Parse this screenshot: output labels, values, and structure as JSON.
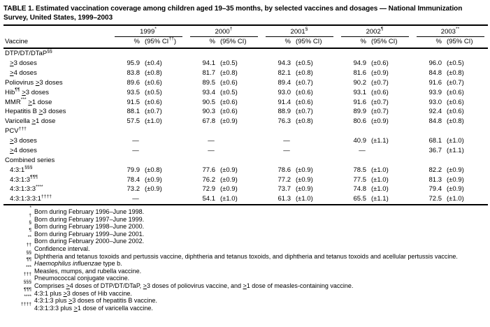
{
  "title": "TABLE 1. Estimated vaccination coverage among children aged 19–35 months, by selected vaccines and dosages — National Immunization Survey, United States, 1999–2003",
  "dash": "—",
  "columns": {
    "vaccine_label": "Vaccine",
    "pct_label": "%",
    "years": [
      {
        "label": "1999",
        "marker": "*",
        "ci": "(95% CI",
        "ci_marker": "††",
        "ci_close": ")"
      },
      {
        "label": "2000",
        "marker": "†",
        "ci": "(95% CI)",
        "ci_marker": "",
        "ci_close": ""
      },
      {
        "label": "2001",
        "marker": "§",
        "ci": "(95% CI)",
        "ci_marker": "",
        "ci_close": ""
      },
      {
        "label": "2002",
        "marker": "¶",
        "ci": "(95% CI)",
        "ci_marker": "",
        "ci_close": ""
      },
      {
        "label": "2003",
        "marker": "**",
        "ci": "(95% CI)",
        "ci_marker": "",
        "ci_close": ""
      }
    ]
  },
  "rows": [
    {
      "kind": "section",
      "indent": false,
      "label": "DTP/DT/DTaP",
      "marker": "§§",
      "label_after": "",
      "cells": []
    },
    {
      "kind": "data",
      "indent": true,
      "label": "≥3 doses",
      "marker": "",
      "label_after": "",
      "cells": [
        {
          "pct": "95.9",
          "ci": "(±0.4)"
        },
        {
          "pct": "94.1",
          "ci": "(±0.5)"
        },
        {
          "pct": "94.3",
          "ci": "(±0.5)"
        },
        {
          "pct": "94.9",
          "ci": "(±0.6)"
        },
        {
          "pct": "96.0",
          "ci": "(±0.5)"
        }
      ]
    },
    {
      "kind": "data",
      "indent": true,
      "label": "≥4 doses",
      "marker": "",
      "label_after": "",
      "cells": [
        {
          "pct": "83.8",
          "ci": "(±0.8)"
        },
        {
          "pct": "81.7",
          "ci": "(±0.8)"
        },
        {
          "pct": "82.1",
          "ci": "(±0.8)"
        },
        {
          "pct": "81.6",
          "ci": "(±0.9)"
        },
        {
          "pct": "84.8",
          "ci": "(±0.8)"
        }
      ]
    },
    {
      "kind": "data",
      "indent": false,
      "label": "Poliovirus ≥3 doses",
      "marker": "",
      "label_after": "",
      "cells": [
        {
          "pct": "89.6",
          "ci": "(±0.6)"
        },
        {
          "pct": "89.5",
          "ci": "(±0.6)"
        },
        {
          "pct": "89.4",
          "ci": "(±0.7)"
        },
        {
          "pct": "90.2",
          "ci": "(±0.7)"
        },
        {
          "pct": "91.6",
          "ci": "(±0.7)"
        }
      ]
    },
    {
      "kind": "data",
      "indent": false,
      "label": "Hib",
      "marker": "¶¶",
      "label_after": " ≥3 doses",
      "cells": [
        {
          "pct": "93.5",
          "ci": "(±0.5)"
        },
        {
          "pct": "93.4",
          "ci": "(±0.5)"
        },
        {
          "pct": "93.0",
          "ci": "(±0.6)"
        },
        {
          "pct": "93.1",
          "ci": "(±0.6)"
        },
        {
          "pct": "93.9",
          "ci": "(±0.6)"
        }
      ]
    },
    {
      "kind": "data",
      "indent": false,
      "label": "MMR",
      "marker": "***",
      "label_after": " ≥1 dose",
      "cells": [
        {
          "pct": "91.5",
          "ci": "(±0.6)"
        },
        {
          "pct": "90.5",
          "ci": "(±0.6)"
        },
        {
          "pct": "91.4",
          "ci": "(±0.6)"
        },
        {
          "pct": "91.6",
          "ci": "(±0.7)"
        },
        {
          "pct": "93.0",
          "ci": "(±0.6)"
        }
      ]
    },
    {
      "kind": "data",
      "indent": false,
      "label": "Hepatitis B ≥3 doses",
      "marker": "",
      "label_after": "",
      "cells": [
        {
          "pct": "88.1",
          "ci": "(±0.7)"
        },
        {
          "pct": "90.3",
          "ci": "(±0.6)"
        },
        {
          "pct": "88.9",
          "ci": "(±0.7)"
        },
        {
          "pct": "89.9",
          "ci": "(±0.7)"
        },
        {
          "pct": "92.4",
          "ci": "(±0.6)"
        }
      ]
    },
    {
      "kind": "data",
      "indent": false,
      "label": "Varicella ≥1 dose",
      "marker": "",
      "label_after": "",
      "cells": [
        {
          "pct": "57.5",
          "ci": "(±1.0)"
        },
        {
          "pct": "67.8",
          "ci": "(±0.9)"
        },
        {
          "pct": "76.3",
          "ci": "(±0.8)"
        },
        {
          "pct": "80.6",
          "ci": "(±0.9)"
        },
        {
          "pct": "84.8",
          "ci": "(±0.8)"
        }
      ]
    },
    {
      "kind": "section",
      "indent": false,
      "label": "PCV",
      "marker": "†††",
      "label_after": "",
      "cells": []
    },
    {
      "kind": "data",
      "indent": true,
      "label": "≥3 doses",
      "marker": "",
      "label_after": "",
      "cells": [
        {
          "dash": true
        },
        {
          "dash": true
        },
        {
          "dash": true
        },
        {
          "pct": "40.9",
          "ci": "(±1.1)"
        },
        {
          "pct": "68.1",
          "ci": "(±1.0)"
        }
      ]
    },
    {
      "kind": "data",
      "indent": true,
      "label": "≥4 doses",
      "marker": "",
      "label_after": "",
      "cells": [
        {
          "dash": true
        },
        {
          "dash": true
        },
        {
          "dash": true
        },
        {
          "dash": true
        },
        {
          "pct": "36.7",
          "ci": "(±1.1)"
        }
      ]
    },
    {
      "kind": "section",
      "indent": false,
      "label": "Combined series",
      "marker": "",
      "label_after": "",
      "cells": []
    },
    {
      "kind": "data",
      "indent": true,
      "label": "4:3:1",
      "marker": "§§§",
      "label_after": "",
      "cells": [
        {
          "pct": "79.9",
          "ci": "(±0.8)"
        },
        {
          "pct": "77.6",
          "ci": "(±0.9)"
        },
        {
          "pct": "78.6",
          "ci": "(±0.9)"
        },
        {
          "pct": "78.5",
          "ci": "(±1.0)"
        },
        {
          "pct": "82.2",
          "ci": "(±0.9)"
        }
      ]
    },
    {
      "kind": "data",
      "indent": true,
      "label": "4:3:1:3",
      "marker": "¶¶¶",
      "label_after": "",
      "cells": [
        {
          "pct": "78.4",
          "ci": "(±0.9)"
        },
        {
          "pct": "76.2",
          "ci": "(±0.9)"
        },
        {
          "pct": "77.2",
          "ci": "(±0.9)"
        },
        {
          "pct": "77.5",
          "ci": "(±1.0)"
        },
        {
          "pct": "81.3",
          "ci": "(±0.9)"
        }
      ]
    },
    {
      "kind": "data",
      "indent": true,
      "label": "4:3:1:3:3",
      "marker": "****",
      "label_after": "",
      "cells": [
        {
          "pct": "73.2",
          "ci": "(±0.9)"
        },
        {
          "pct": "72.9",
          "ci": "(±0.9)"
        },
        {
          "pct": "73.7",
          "ci": "(±0.9)"
        },
        {
          "pct": "74.8",
          "ci": "(±1.0)"
        },
        {
          "pct": "79.4",
          "ci": "(±0.9)"
        }
      ]
    },
    {
      "kind": "data",
      "indent": true,
      "label": "4:3:1:3:3:1",
      "marker": "††††",
      "label_after": "",
      "cells": [
        {
          "dash": true
        },
        {
          "pct": "54.1",
          "ci": "(±1.0)"
        },
        {
          "pct": "61.3",
          "ci": "(±1.0)"
        },
        {
          "pct": "65.5",
          "ci": "(±1.1)"
        },
        {
          "pct": "72.5",
          "ci": "(±1.0)"
        }
      ]
    }
  ],
  "footnotes": [
    {
      "marker": "*",
      "italic": "",
      "text": "Born during February 1996–June 1998."
    },
    {
      "marker": "†",
      "italic": "",
      "text": "Born during February 1997–June 1999."
    },
    {
      "marker": "§",
      "italic": "",
      "text": "Born during February 1998–June 2000."
    },
    {
      "marker": "¶",
      "italic": "",
      "text": "Born during February 1999–June 2001."
    },
    {
      "marker": "**",
      "italic": "",
      "text": "Born during February 2000–June 2002."
    },
    {
      "marker": "††",
      "italic": "",
      "text": "Confidence interval."
    },
    {
      "marker": "§§",
      "italic": "",
      "text": "Diphtheria and tetanus toxoids and pertussis vaccine, diphtheria and tetanus toxoids, and diphtheria and tetanus toxoids and acellular pertussis vaccine."
    },
    {
      "marker": "¶¶",
      "italic": "Haemophilus influenzae",
      "text": " type b."
    },
    {
      "marker": "***",
      "italic": "",
      "text": "Measles, mumps, and rubella vaccine."
    },
    {
      "marker": "†††",
      "italic": "",
      "text": "Pneumococcal conjugate vaccine."
    },
    {
      "marker": "§§§",
      "italic": "",
      "text": "Comprises ≥4 doses of DTP/DT/DTaP, ≥3 doses of poliovirus vaccine, and ≥1 dose of measles-containing vaccine."
    },
    {
      "marker": "¶¶¶",
      "italic": "",
      "text": "4:3:1 plus ≥3 doses of Hib vaccine."
    },
    {
      "marker": "****",
      "italic": "",
      "text": "4:3:1:3 plus ≥3 doses of hepatitis B vaccine."
    },
    {
      "marker": "††††",
      "italic": "",
      "text": "4:3:1:3:3 plus ≥1 dose of varicella vaccine."
    }
  ]
}
